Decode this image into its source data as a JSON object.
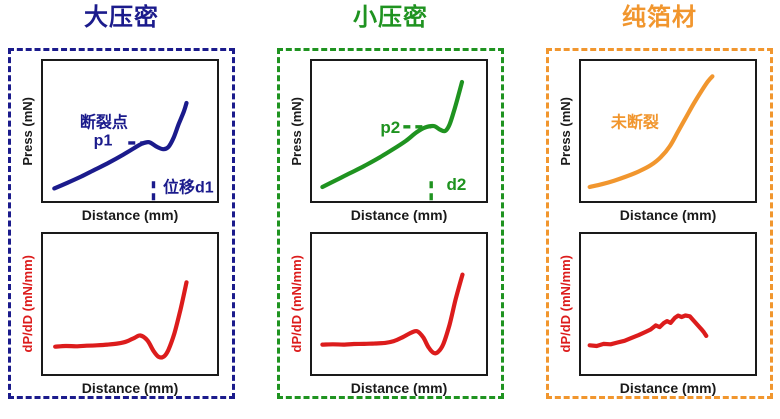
{
  "figure": {
    "background": "#ffffff",
    "panels": [
      {
        "id": "big-compaction",
        "title": "大压密",
        "accent": "#1b1b8c"
      },
      {
        "id": "small-compaction",
        "title": "小压密",
        "accent": "#1f9320"
      },
      {
        "id": "pure-foil",
        "title": "纯箔材",
        "accent": "#f1962e"
      }
    ]
  },
  "chart_data": [
    {
      "id": "big-compaction-press",
      "panel": "大压密",
      "type": "line",
      "xlabel": "Distance (mm)",
      "ylabel": "Press (mN)",
      "ylabel_color": "#1a1a1a",
      "line_color": "#1b1b8c",
      "grid": false,
      "tick_labels": "none",
      "xlim": [
        0,
        1
      ],
      "ylim": [
        0,
        1
      ],
      "axes_note": "schematic curve, no numeric ticks; points normalized 0-1",
      "smooth": true,
      "points": [
        [
          0.065,
          0.09
        ],
        [
          0.14,
          0.13
        ],
        [
          0.22,
          0.175
        ],
        [
          0.3,
          0.225
        ],
        [
          0.38,
          0.275
        ],
        [
          0.46,
          0.33
        ],
        [
          0.52,
          0.375
        ],
        [
          0.57,
          0.41
        ],
        [
          0.61,
          0.42
        ],
        [
          0.65,
          0.39
        ],
        [
          0.69,
          0.37
        ],
        [
          0.72,
          0.385
        ],
        [
          0.75,
          0.45
        ],
        [
          0.78,
          0.55
        ],
        [
          0.81,
          0.64
        ],
        [
          0.825,
          0.7
        ]
      ],
      "annotations": [
        {
          "kind": "text",
          "name": "fracture-point-label",
          "text": "断裂点",
          "x": 0.35,
          "y": 0.555,
          "size": 16
        },
        {
          "kind": "text",
          "name": "p1-label",
          "text": "p1",
          "x": 0.345,
          "y": 0.425,
          "size": 16
        },
        {
          "kind": "hdash",
          "name": "p1-level-dash",
          "x1": 0.49,
          "x2": 0.595,
          "y": 0.415
        },
        {
          "kind": "vdash",
          "name": "d1-position-dash",
          "x": 0.635,
          "y1": 0.005,
          "y2": 0.145
        },
        {
          "kind": "text",
          "name": "d1-label",
          "text": "位移d1",
          "x": 0.835,
          "y": 0.085,
          "size": 16
        }
      ]
    },
    {
      "id": "big-compaction-derivative",
      "panel": "大压密",
      "type": "line",
      "xlabel": "Distance (mm)",
      "ylabel": "dP/dD (mN/mm)",
      "ylabel_color": "#dc1c1c",
      "line_color": "#dc1c1c",
      "grid": false,
      "tick_labels": "none",
      "xlim": [
        0,
        1
      ],
      "ylim": [
        0,
        1
      ],
      "axes_note": "schematic curve, no numeric ticks; points normalized 0-1",
      "smooth": true,
      "points": [
        [
          0.07,
          0.195
        ],
        [
          0.13,
          0.2
        ],
        [
          0.19,
          0.198
        ],
        [
          0.25,
          0.202
        ],
        [
          0.31,
          0.205
        ],
        [
          0.37,
          0.21
        ],
        [
          0.43,
          0.218
        ],
        [
          0.48,
          0.232
        ],
        [
          0.525,
          0.258
        ],
        [
          0.56,
          0.275
        ],
        [
          0.6,
          0.24
        ],
        [
          0.635,
          0.165
        ],
        [
          0.665,
          0.122
        ],
        [
          0.695,
          0.125
        ],
        [
          0.72,
          0.17
        ],
        [
          0.755,
          0.29
        ],
        [
          0.79,
          0.46
        ],
        [
          0.825,
          0.655
        ]
      ],
      "annotations": []
    },
    {
      "id": "small-compaction-press",
      "panel": "小压密",
      "type": "line",
      "xlabel": "Distance (mm)",
      "ylabel": "Press (mN)",
      "ylabel_color": "#1a1a1a",
      "line_color": "#1f9320",
      "grid": false,
      "tick_labels": "none",
      "xlim": [
        0,
        1
      ],
      "ylim": [
        0,
        1
      ],
      "axes_note": "schematic curve, no numeric ticks; points normalized 0-1",
      "smooth": true,
      "points": [
        [
          0.06,
          0.1
        ],
        [
          0.14,
          0.15
        ],
        [
          0.22,
          0.2
        ],
        [
          0.3,
          0.25
        ],
        [
          0.38,
          0.305
        ],
        [
          0.46,
          0.365
        ],
        [
          0.54,
          0.43
        ],
        [
          0.6,
          0.49
        ],
        [
          0.65,
          0.525
        ],
        [
          0.7,
          0.535
        ],
        [
          0.735,
          0.51
        ],
        [
          0.765,
          0.5
        ],
        [
          0.79,
          0.545
        ],
        [
          0.82,
          0.66
        ],
        [
          0.845,
          0.77
        ],
        [
          0.862,
          0.85
        ]
      ],
      "annotations": [
        {
          "kind": "text",
          "name": "p2-label",
          "text": "p2",
          "x": 0.45,
          "y": 0.525,
          "size": 17
        },
        {
          "kind": "hdash",
          "name": "p2-level-dash",
          "x1": 0.525,
          "x2": 0.685,
          "y": 0.53
        },
        {
          "kind": "vdash",
          "name": "d2-position-dash",
          "x": 0.685,
          "y1": 0.005,
          "y2": 0.145
        },
        {
          "kind": "text",
          "name": "d2-label",
          "text": "d2",
          "x": 0.83,
          "y": 0.115,
          "size": 17
        }
      ]
    },
    {
      "id": "small-compaction-derivative",
      "panel": "小压密",
      "type": "line",
      "xlabel": "Distance (mm)",
      "ylabel": "dP/dD (mN/mm)",
      "ylabel_color": "#dc1c1c",
      "line_color": "#dc1c1c",
      "grid": false,
      "tick_labels": "none",
      "xlim": [
        0,
        1
      ],
      "ylim": [
        0,
        1
      ],
      "axes_note": "schematic curve, no numeric ticks; points normalized 0-1",
      "smooth": true,
      "points": [
        [
          0.06,
          0.21
        ],
        [
          0.12,
          0.212
        ],
        [
          0.18,
          0.21
        ],
        [
          0.24,
          0.214
        ],
        [
          0.3,
          0.215
        ],
        [
          0.36,
          0.218
        ],
        [
          0.42,
          0.222
        ],
        [
          0.47,
          0.235
        ],
        [
          0.52,
          0.262
        ],
        [
          0.57,
          0.295
        ],
        [
          0.605,
          0.305
        ],
        [
          0.64,
          0.26
        ],
        [
          0.67,
          0.19
        ],
        [
          0.7,
          0.15
        ],
        [
          0.725,
          0.158
        ],
        [
          0.755,
          0.215
        ],
        [
          0.79,
          0.35
        ],
        [
          0.825,
          0.53
        ],
        [
          0.865,
          0.71
        ]
      ],
      "annotations": []
    },
    {
      "id": "pure-foil-press",
      "panel": "纯箔材",
      "type": "line",
      "xlabel": "Distance (mm)",
      "ylabel": "Press (mN)",
      "ylabel_color": "#1a1a1a",
      "line_color": "#f1962e",
      "grid": false,
      "tick_labels": "none",
      "xlim": [
        0,
        1
      ],
      "ylim": [
        0,
        1
      ],
      "axes_note": "schematic curve, no numeric ticks; points normalized 0-1",
      "smooth": true,
      "points": [
        [
          0.05,
          0.1
        ],
        [
          0.12,
          0.12
        ],
        [
          0.19,
          0.145
        ],
        [
          0.26,
          0.175
        ],
        [
          0.33,
          0.21
        ],
        [
          0.4,
          0.255
        ],
        [
          0.46,
          0.315
        ],
        [
          0.51,
          0.39
        ],
        [
          0.555,
          0.49
        ],
        [
          0.6,
          0.59
        ],
        [
          0.65,
          0.7
        ],
        [
          0.695,
          0.79
        ],
        [
          0.73,
          0.855
        ],
        [
          0.755,
          0.89
        ]
      ],
      "annotations": [
        {
          "kind": "text",
          "name": "no-fracture-label",
          "text": "未断裂",
          "x": 0.31,
          "y": 0.555,
          "size": 16
        }
      ]
    },
    {
      "id": "pure-foil-derivative",
      "panel": "纯箔材",
      "type": "line",
      "xlabel": "Distance (mm)",
      "ylabel": "dP/dD (mN/mm)",
      "ylabel_color": "#dc1c1c",
      "line_color": "#dc1c1c",
      "grid": false,
      "tick_labels": "none",
      "xlim": [
        0,
        1
      ],
      "ylim": [
        0,
        1
      ],
      "axes_note": "noisy schematic curve, no numeric ticks; points normalized 0-1",
      "smooth": false,
      "points": [
        [
          0.05,
          0.205
        ],
        [
          0.09,
          0.2
        ],
        [
          0.13,
          0.215
        ],
        [
          0.17,
          0.212
        ],
        [
          0.21,
          0.225
        ],
        [
          0.25,
          0.237
        ],
        [
          0.29,
          0.258
        ],
        [
          0.33,
          0.277
        ],
        [
          0.37,
          0.3
        ],
        [
          0.4,
          0.318
        ],
        [
          0.43,
          0.347
        ],
        [
          0.452,
          0.335
        ],
        [
          0.475,
          0.363
        ],
        [
          0.495,
          0.378
        ],
        [
          0.515,
          0.365
        ],
        [
          0.54,
          0.402
        ],
        [
          0.558,
          0.417
        ],
        [
          0.578,
          0.407
        ],
        [
          0.6,
          0.418
        ],
        [
          0.625,
          0.412
        ],
        [
          0.65,
          0.378
        ],
        [
          0.672,
          0.347
        ],
        [
          0.69,
          0.322
        ],
        [
          0.705,
          0.3
        ],
        [
          0.72,
          0.272
        ]
      ],
      "annotations": []
    }
  ]
}
